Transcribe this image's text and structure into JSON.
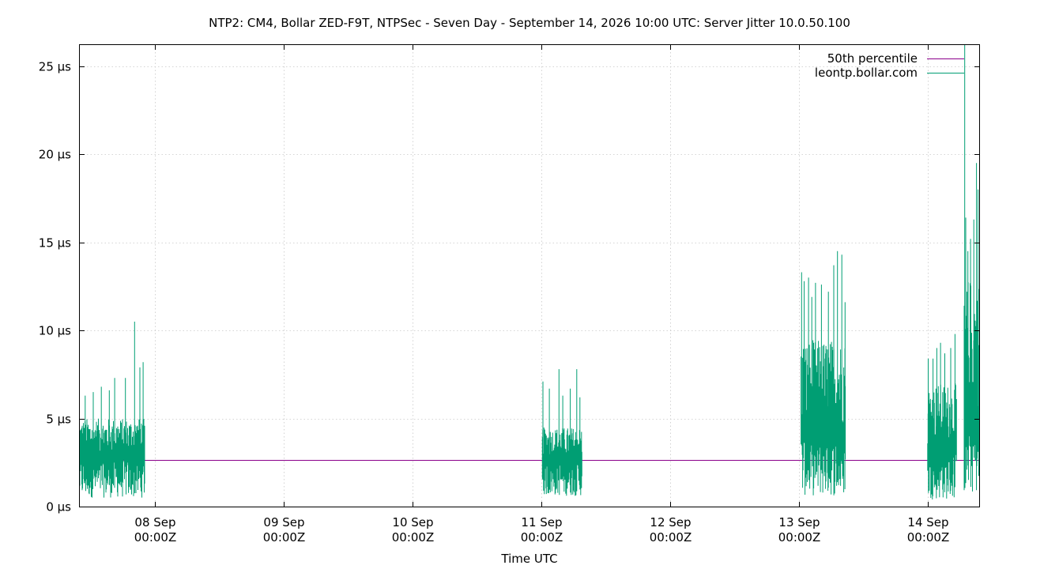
{
  "chart_data": {
    "type": "line",
    "title": "NTP2: CM4, Bollar ZED-F9T, NTPSec - Seven Day - September 14, 2026 10:00 UTC: Server Jitter 10.0.50.100",
    "xlabel": "Time UTC",
    "ylabel": "",
    "x_unit": "hours since 07 Sep 00:00Z",
    "xlim": [
      -14.0,
      153.6
    ],
    "ylim": [
      0,
      26.2
    ],
    "y_ticks": [
      {
        "value": 0,
        "label": "0 µs"
      },
      {
        "value": 5,
        "label": "5 µs"
      },
      {
        "value": 10,
        "label": "10 µs"
      },
      {
        "value": 15,
        "label": "15 µs"
      },
      {
        "value": 20,
        "label": "20 µs"
      },
      {
        "value": 25,
        "label": "25 µs"
      }
    ],
    "x_ticks": [
      {
        "value": 0,
        "line1": "08 Sep",
        "line2": "00:00Z"
      },
      {
        "value": 24,
        "line1": "09 Sep",
        "line2": "00:00Z"
      },
      {
        "value": 48,
        "line1": "10 Sep",
        "line2": "00:00Z"
      },
      {
        "value": 72,
        "line1": "11 Sep",
        "line2": "00:00Z"
      },
      {
        "value": 96,
        "line1": "12 Sep",
        "line2": "00:00Z"
      },
      {
        "value": 120,
        "line1": "13 Sep",
        "line2": "00:00Z"
      },
      {
        "value": 144,
        "line1": "14 Sep",
        "line2": "00:00Z"
      }
    ],
    "grid": true,
    "legend_position": "top-right",
    "series": [
      {
        "name": "50th percentile",
        "color": "#8b008b",
        "kind": "constant",
        "value": 2.65
      },
      {
        "name": "leontp.bollar.com",
        "color": "#009e73",
        "kind": "jitter",
        "segments": [
          {
            "x_start": -14.0,
            "x_end": -1.9,
            "low": 0.5,
            "base": 3.0,
            "high": 5.0,
            "peaks": [
              [
                -13.0,
                6.3
              ],
              [
                -11.5,
                6.5
              ],
              [
                -10.0,
                6.8
              ],
              [
                -8.5,
                6.6
              ],
              [
                -7.5,
                7.3
              ],
              [
                -5.5,
                7.3
              ],
              [
                -3.8,
                10.5
              ],
              [
                -2.8,
                7.9
              ],
              [
                -2.2,
                8.2
              ]
            ]
          },
          {
            "x_start": 72.2,
            "x_end": 79.6,
            "low": 0.6,
            "base": 2.8,
            "high": 4.5,
            "peaks": [
              [
                72.3,
                7.1
              ],
              [
                73.5,
                6.7
              ],
              [
                75.3,
                7.8
              ],
              [
                76.0,
                6.3
              ],
              [
                77.4,
                6.7
              ],
              [
                78.6,
                7.8
              ],
              [
                79.2,
                6.2
              ]
            ]
          },
          {
            "x_start": 120.4,
            "x_end": 128.7,
            "low": 0.6,
            "base": 4.5,
            "high": 9.5,
            "peaks": [
              [
                120.5,
                13.3
              ],
              [
                121.0,
                12.8
              ],
              [
                121.8,
                13.0
              ],
              [
                122.4,
                11.9
              ],
              [
                123.1,
                12.7
              ],
              [
                124.2,
                12.6
              ],
              [
                125.5,
                12.2
              ],
              [
                126.5,
                13.7
              ],
              [
                127.2,
                14.5
              ],
              [
                128.0,
                14.3
              ],
              [
                128.6,
                11.6
              ]
            ]
          },
          {
            "x_start": 144.0,
            "x_end": 149.4,
            "low": 0.4,
            "base": 3.5,
            "high": 7.0,
            "peaks": [
              [
                144.1,
                8.4
              ],
              [
                145.0,
                8.4
              ],
              [
                145.7,
                9.0
              ],
              [
                146.4,
                9.3
              ],
              [
                147.2,
                8.7
              ],
              [
                148.3,
                9.0
              ],
              [
                149.1,
                9.8
              ]
            ]
          },
          {
            "x_start": 150.8,
            "x_end": 153.6,
            "low": 0.7,
            "base": 5.5,
            "high": 13.0,
            "peaks": [
              [
                150.9,
                26.2
              ],
              [
                151.1,
                16.4
              ],
              [
                151.5,
                14.5
              ],
              [
                152.0,
                15.2
              ],
              [
                152.6,
                16.3
              ],
              [
                153.1,
                19.5
              ],
              [
                153.4,
                18.0
              ]
            ]
          }
        ]
      }
    ]
  }
}
